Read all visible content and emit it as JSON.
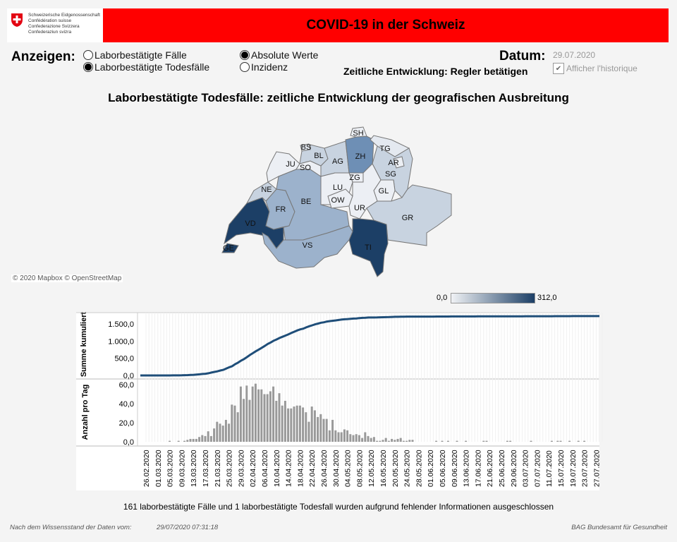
{
  "header": {
    "logo_lines": [
      "Schweizerische Eidgenossenschaft",
      "Confédération suisse",
      "Confederazione Svizzera",
      "Confederaziun svizra"
    ],
    "title": "COVID-19 in der Schweiz"
  },
  "controls": {
    "show_label": "Anzeigen:",
    "measure_options": [
      {
        "label": "Laborbestätigte Fälle",
        "selected": false
      },
      {
        "label": "Laborbestätigte Todesfälle",
        "selected": true
      }
    ],
    "value_options": [
      {
        "label": "Absolute Werte",
        "selected": true
      },
      {
        "label": "Inzidenz",
        "selected": false
      }
    ],
    "date_label": "Datum:",
    "date_value": "29.07.2020",
    "slider_hint": "Zeitliche Entwicklung: Regler betätigen",
    "history_checkbox": {
      "label": "Afficher l'historique",
      "checked": true
    }
  },
  "map": {
    "title": "Laborbestätigte Todesfälle: zeitliche Entwicklung der geografischen Ausbreitung",
    "attribution": "© 2020 Mapbox © OpenStreetMap",
    "legend": {
      "min": "0,0",
      "max": "312,0",
      "min_color": "#f0f2f5",
      "max_color": "#1c3f66"
    },
    "cantons": [
      {
        "code": "GE",
        "fill": "#1c3f66"
      },
      {
        "code": "VD",
        "fill": "#1c3f66"
      },
      {
        "code": "FR",
        "fill": "#9cb2cc"
      },
      {
        "code": "NE",
        "fill": "#c8d3e0"
      },
      {
        "code": "JU",
        "fill": "#eceff4"
      },
      {
        "code": "BE",
        "fill": "#9cb2cc"
      },
      {
        "code": "SO",
        "fill": "#eceff4"
      },
      {
        "code": "BS",
        "fill": "#e4e9f0"
      },
      {
        "code": "BL",
        "fill": "#c8d3e0"
      },
      {
        "code": "AG",
        "fill": "#c8d3e0"
      },
      {
        "code": "ZH",
        "fill": "#6e8fb5"
      },
      {
        "code": "SH",
        "fill": "#eceff4"
      },
      {
        "code": "TG",
        "fill": "#e4e9f0"
      },
      {
        "code": "SG",
        "fill": "#c8d3e0"
      },
      {
        "code": "AR",
        "fill": "#eceff4"
      },
      {
        "code": "GL",
        "fill": "#eceff4"
      },
      {
        "code": "ZG",
        "fill": "#eceff4"
      },
      {
        "code": "LU",
        "fill": "#eceff4"
      },
      {
        "code": "OW",
        "fill": "#eceff4"
      },
      {
        "code": "UR",
        "fill": "#eceff4"
      },
      {
        "code": "GR",
        "fill": "#c8d3e0"
      },
      {
        "code": "TI",
        "fill": "#1c3f66"
      },
      {
        "code": "VS",
        "fill": "#9cb2cc"
      }
    ]
  },
  "chart_data": [
    {
      "type": "line",
      "ylabel": "Summe kumuliert",
      "yticks": [
        "0,0",
        "500,0",
        "1.000,0",
        "1.500,0"
      ],
      "ylim": [
        0,
        1800
      ],
      "note": "cumulative sum of daily values",
      "color": "#1f4e79"
    },
    {
      "type": "bar",
      "ylabel": "Anzahl pro Tag",
      "yticks": [
        "0,0",
        "20,0",
        "40,0",
        "60,0"
      ],
      "ylim": [
        0,
        62
      ],
      "start_date": "26.02.2020",
      "color": "#999999",
      "values": [
        0,
        0,
        0,
        0,
        0,
        0,
        0,
        0,
        1,
        0,
        0,
        1,
        0,
        1,
        2,
        3,
        3,
        3,
        5,
        7,
        6,
        11,
        6,
        14,
        21,
        19,
        17,
        23,
        19,
        39,
        38,
        31,
        58,
        45,
        59,
        44,
        58,
        61,
        55,
        55,
        50,
        50,
        53,
        58,
        43,
        51,
        38,
        43,
        35,
        35,
        37,
        38,
        38,
        36,
        31,
        21,
        37,
        33,
        26,
        29,
        24,
        24,
        12,
        23,
        12,
        10,
        10,
        13,
        12,
        8,
        7,
        8,
        7,
        4,
        10,
        6,
        4,
        5,
        1,
        1,
        2,
        4,
        1,
        3,
        2,
        3,
        4,
        1,
        1,
        2,
        2,
        0,
        0,
        0,
        0,
        0,
        0,
        0,
        1,
        0,
        1,
        0,
        1,
        0,
        0,
        1,
        0,
        0,
        1,
        0,
        0,
        0,
        0,
        0,
        1,
        1,
        0,
        0,
        0,
        0,
        0,
        0,
        1,
        1,
        0,
        0,
        0,
        0,
        0,
        0,
        1,
        0,
        0,
        0,
        0,
        0,
        0,
        1,
        0,
        1,
        1,
        0,
        0,
        1,
        0,
        0,
        1,
        0,
        1,
        0,
        0,
        0,
        0,
        0,
        0
      ],
      "xticks": [
        "26.02.2020",
        "01.03.2020",
        "05.03.2020",
        "09.03.2020",
        "13.03.2020",
        "17.03.2020",
        "21.03.2020",
        "25.03.2020",
        "29.03.2020",
        "02.04.2020",
        "06.04.2020",
        "10.04.2020",
        "14.04.2020",
        "18.04.2020",
        "22.04.2020",
        "26.04.2020",
        "30.04.2020",
        "04.05.2020",
        "08.05.2020",
        "12.05.2020",
        "16.05.2020",
        "20.05.2020",
        "24.05.2020",
        "28.05.2020",
        "01.06.2020",
        "05.06.2020",
        "09.06.2020",
        "13.06.2020",
        "17.06.2020",
        "21.06.2020",
        "25.06.2020",
        "29.06.2020",
        "03.07.2020",
        "07.07.2020",
        "11.07.2020",
        "15.07.2020",
        "19.07.2020",
        "23.07.2020",
        "27.07.2020"
      ]
    }
  ],
  "footer": {
    "excluded_note": "161 laborbestätigte Fälle und 1 laborbestätigte Todesfall wurden aufgrund fehlender Informationen ausgeschlossen",
    "data_state_label": "Nach dem Wissensstand der Daten vom:",
    "data_state_value": "29/07/2020 07:31:18",
    "source": "BAG Bundesamt für Gesundheit"
  }
}
